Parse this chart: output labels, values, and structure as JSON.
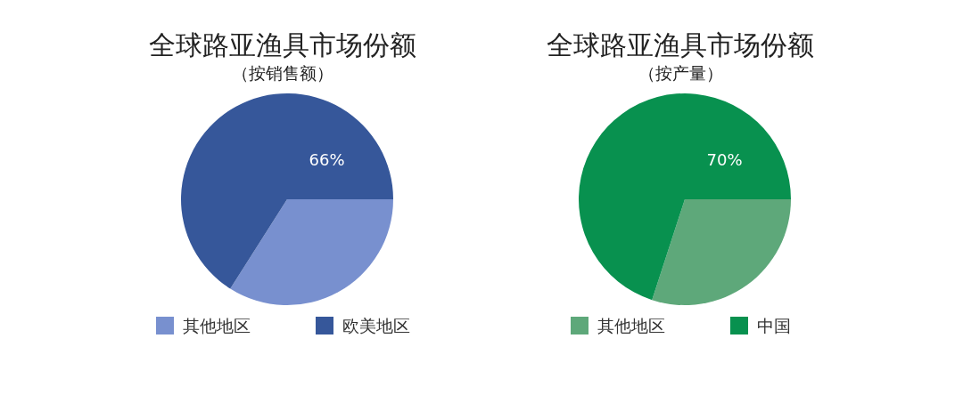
{
  "chart_data": [
    {
      "type": "pie",
      "title": "全球路亚渔具市场份额",
      "subtitle": "（按销售额）",
      "categories": [
        "其他地区",
        "欧美地区"
      ],
      "values": [
        34,
        66
      ],
      "colors": [
        "#7890cf",
        "#36579a"
      ],
      "value_labels": [
        null,
        "66%"
      ],
      "legend": "bottom"
    },
    {
      "type": "pie",
      "title": "全球路亚渔具市场份额",
      "subtitle": "（按产量）",
      "categories": [
        "其他地区",
        "中国"
      ],
      "values": [
        30,
        70
      ],
      "colors": [
        "#5ea87a",
        "#08914f"
      ],
      "value_labels": [
        null,
        "70%"
      ],
      "legend": "bottom"
    }
  ]
}
